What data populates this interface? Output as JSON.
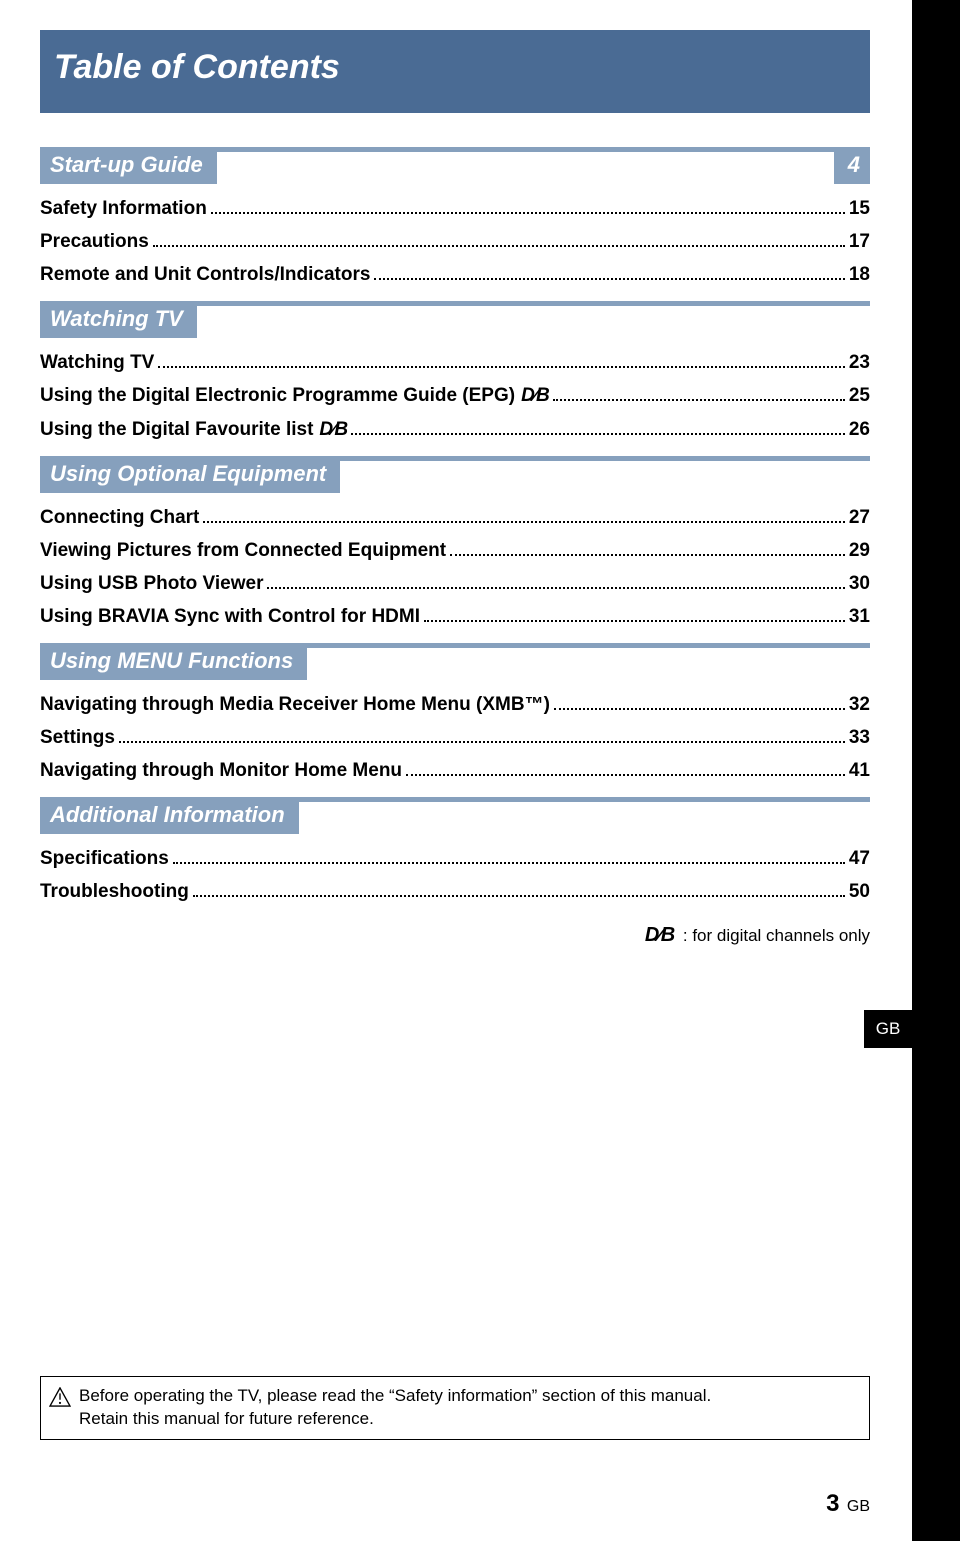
{
  "colors": {
    "title_bg": "#4a6b94",
    "section_bg": "#86a0bd",
    "text_on_blue": "#ffffff",
    "body_text": "#000000",
    "black_bar": "#000000"
  },
  "page_title": "Table of Contents",
  "side_tab": "GB",
  "dvb_glyph": "D∕B",
  "sections": [
    {
      "label": "Start-up Guide",
      "page": "4",
      "entries": [
        {
          "label": "Safety Information",
          "page": "15",
          "dvb": false
        },
        {
          "label": "Precautions",
          "page": "17",
          "dvb": false
        },
        {
          "label": "Remote and Unit Controls/Indicators",
          "page": "18",
          "dvb": false
        }
      ]
    },
    {
      "label": "Watching TV",
      "page": null,
      "entries": [
        {
          "label": "Watching TV",
          "page": "23",
          "dvb": false
        },
        {
          "label": "Using the Digital Electronic Programme Guide (EPG)",
          "page": "25",
          "dvb": true
        },
        {
          "label": "Using the Digital Favourite list",
          "page": "26",
          "dvb": true
        }
      ]
    },
    {
      "label": "Using Optional Equipment",
      "page": null,
      "entries": [
        {
          "label": "Connecting Chart",
          "page": "27",
          "dvb": false
        },
        {
          "label": "Viewing Pictures from Connected Equipment",
          "page": "29",
          "dvb": false
        },
        {
          "label": "Using USB Photo Viewer",
          "page": "30",
          "dvb": false
        },
        {
          "label": "Using BRAVIA Sync with Control for HDMI",
          "page": "31",
          "dvb": false
        }
      ]
    },
    {
      "label": "Using MENU Functions",
      "page": null,
      "entries": [
        {
          "label": "Navigating through Media Receiver Home Menu (XMB™)",
          "page": "32",
          "dvb": false
        },
        {
          "label": "Settings",
          "page": "33",
          "dvb": false
        },
        {
          "label": "Navigating through Monitor Home Menu",
          "page": "41",
          "dvb": false
        }
      ]
    },
    {
      "label": "Additional Information",
      "page": null,
      "entries": [
        {
          "label": "Specifications",
          "page": "47",
          "dvb": false
        },
        {
          "label": "Troubleshooting",
          "page": "50",
          "dvb": false
        }
      ]
    }
  ],
  "legend_text": ": for digital channels only",
  "notice_line1": "Before operating the TV, please read the “Safety information” section of this manual.",
  "notice_line2": "Retain this manual for future reference.",
  "footer_page": "3",
  "footer_region": "GB"
}
